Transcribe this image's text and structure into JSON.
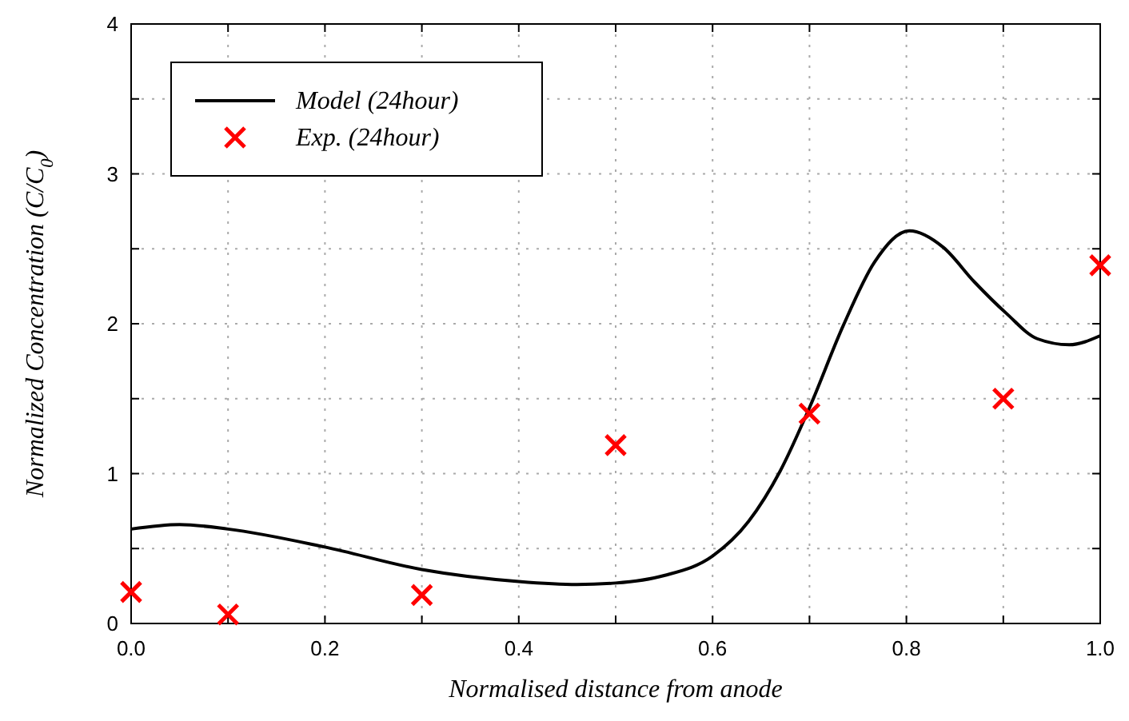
{
  "chart_data": {
    "type": "line",
    "xlabel": "Normalised distance from anode",
    "ylabel": "Normalized Concentration (C/C$_{0}$)",
    "xlim": [
      0,
      1
    ],
    "ylim": [
      0,
      4
    ],
    "xticks": [
      {
        "value": 0,
        "label": "0.0"
      },
      {
        "value": 0.1,
        "label": null
      },
      {
        "value": 0.2,
        "label": "0.2"
      },
      {
        "value": 0.3,
        "label": null
      },
      {
        "value": 0.4,
        "label": "0.4"
      },
      {
        "value": 0.5,
        "label": null
      },
      {
        "value": 0.6,
        "label": "0.6"
      },
      {
        "value": 0.7,
        "label": null
      },
      {
        "value": 0.8,
        "label": "0.8"
      },
      {
        "value": 0.9,
        "label": null
      },
      {
        "value": 1,
        "label": "1.0"
      }
    ],
    "yticks": [
      0,
      {
        "value": 0.5,
        "label": null
      },
      1,
      {
        "value": 1.5,
        "label": null
      },
      2,
      {
        "value": 2.5,
        "label": null
      },
      3,
      {
        "value": 3.5,
        "label": null
      },
      4
    ],
    "grid": true,
    "legend": "top left",
    "series": [
      {
        "name": "Model (24hour)",
        "color": "#000000",
        "marker": "none",
        "line_style": "solid",
        "x": [
          0,
          0.05,
          0.1,
          0.2,
          0.3,
          0.4,
          0.46,
          0.5,
          0.55,
          0.6,
          0.637,
          0.67,
          0.7,
          0.735,
          0.767,
          0.803,
          0.838,
          0.87,
          0.903,
          0.935,
          0.968,
          1.0
        ],
        "values": [
          0.63,
          0.66,
          0.63,
          0.51,
          0.36,
          0.28,
          0.26,
          0.27,
          0.32,
          0.45,
          0.68,
          1.02,
          1.44,
          1.99,
          2.41,
          2.62,
          2.51,
          2.28,
          2.07,
          1.9,
          1.86,
          1.92
        ]
      },
      {
        "name": "Exp. (24hour)",
        "type": "scatter",
        "color": "#ff0000",
        "marker": "cross",
        "x": [
          0,
          0.1,
          0.3,
          0.5,
          0.7,
          0.9,
          1.0
        ],
        "values": [
          0.21,
          0.06,
          0.19,
          1.19,
          1.4,
          1.5,
          2.39
        ]
      }
    ]
  }
}
